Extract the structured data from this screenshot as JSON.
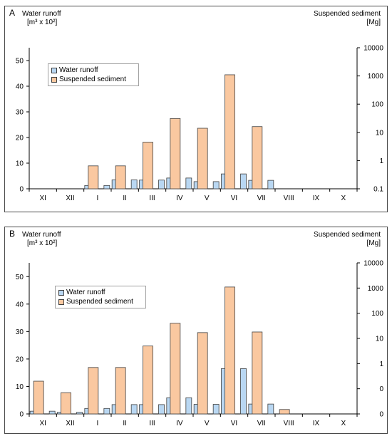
{
  "colors": {
    "runoff": "#b9d7f2",
    "sediment": "#fac8a0",
    "outline": "#404040"
  },
  "chart_data": [
    {
      "type": "bar",
      "panel_label": "A",
      "categories": [
        "XI",
        "XII",
        "I",
        "II",
        "III",
        "IV",
        "V",
        "VI",
        "VII",
        "VIII",
        "IX",
        "X"
      ],
      "left_axis": {
        "label_line1": "Water runoff",
        "label_line2": "[m³ x 10²]",
        "ylim": [
          0,
          55
        ],
        "ticks": [
          "0",
          "10",
          "20",
          "30",
          "40",
          "50"
        ],
        "tick_values": [
          0,
          10,
          20,
          30,
          40,
          50
        ]
      },
      "right_axis": {
        "label_line1": "Suspended sediment",
        "label_line2": "[Mg]",
        "scale": "log",
        "ylim": [
          0.1,
          10000
        ],
        "ticks": [
          "0.1",
          "1",
          "10",
          "100",
          "1000",
          "10000"
        ],
        "tick_values": [
          0.1,
          1,
          10,
          100,
          1000,
          10000
        ]
      },
      "legend": [
        "Water runoff",
        "Suspended sediment"
      ],
      "series": [
        {
          "name": "Water runoff",
          "axis": "left",
          "values": [
            0,
            0,
            1.3,
            3.5,
            3.4,
            4.2,
            2.8,
            5.8,
            3.3,
            0,
            0,
            0
          ]
        },
        {
          "name": "Suspended sediment",
          "axis": "right",
          "values": [
            0,
            0,
            0.65,
            0.65,
            4.5,
            31,
            14,
            1100,
            16,
            0,
            0,
            0
          ]
        }
      ]
    },
    {
      "type": "bar",
      "panel_label": "B",
      "categories": [
        "XI",
        "XII",
        "I",
        "II",
        "III",
        "IV",
        "V",
        "VI",
        "VII",
        "VIII",
        "IX",
        "X"
      ],
      "left_axis": {
        "label_line1": "Water runoff",
        "label_line2": "[m³ x 10²]",
        "ylim": [
          0,
          55
        ],
        "ticks": [
          "0",
          "10",
          "20",
          "30",
          "40",
          "50"
        ],
        "tick_values": [
          0,
          10,
          20,
          30,
          40,
          50
        ]
      },
      "right_axis": {
        "label_line1": "Suspended sediment",
        "label_line2": "[Mg]",
        "scale": "log",
        "ylim": [
          0.01,
          10000
        ],
        "ticks": [
          "0",
          "0",
          "1",
          "10",
          "100",
          "1000",
          "10000"
        ],
        "tick_values": [
          0.01,
          0.1,
          1,
          10,
          100,
          1000,
          10000
        ]
      },
      "legend": [
        "Water runoff",
        "Suspended sediment"
      ],
      "series": [
        {
          "name": "Water runoff",
          "axis": "left",
          "values": [
            1.0,
            0.6,
            2.0,
            3.4,
            3.4,
            5.9,
            3.5,
            16.5,
            3.6,
            0,
            0,
            0
          ]
        },
        {
          "name": "Suspended sediment",
          "axis": "right",
          "values": [
            0.2,
            0.07,
            0.7,
            0.7,
            5,
            40,
            17,
            1100,
            18,
            0.015,
            0,
            0
          ]
        }
      ]
    }
  ]
}
